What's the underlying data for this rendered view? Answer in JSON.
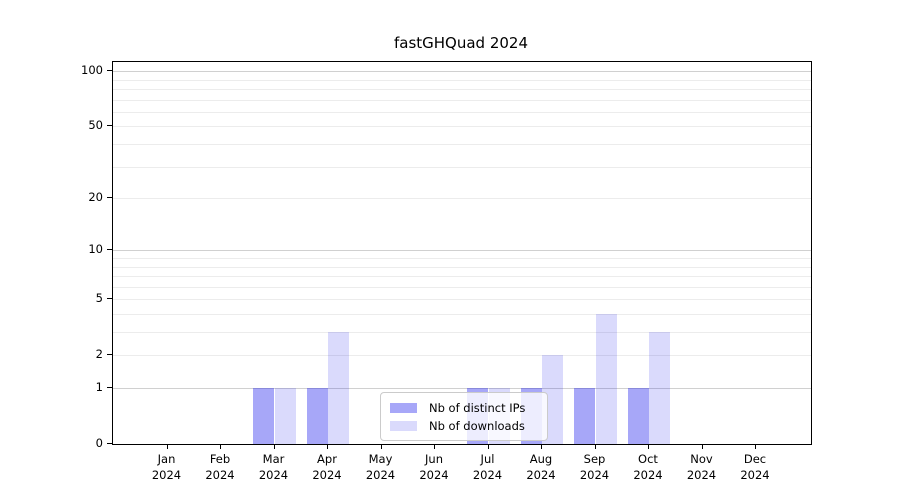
{
  "chart_data": {
    "type": "bar",
    "title": "fastGHQuad 2024",
    "categories": [
      "Jan 2024",
      "Feb 2024",
      "Mar 2024",
      "Apr 2024",
      "May 2024",
      "Jun 2024",
      "Jul 2024",
      "Aug 2024",
      "Sep 2024",
      "Oct 2024",
      "Nov 2024",
      "Dec 2024"
    ],
    "series": [
      {
        "name": "Nb of distinct IPs",
        "values": [
          0,
          0,
          1,
          1,
          0,
          0,
          1,
          1,
          1,
          1,
          0,
          0
        ],
        "color": "rgba(10,10,235,0.36)",
        "color_hex": "#a8a8f7"
      },
      {
        "name": "Nb of downloads",
        "values": [
          0,
          0,
          1,
          3,
          0,
          0,
          1,
          2,
          4,
          3,
          0,
          0
        ],
        "color": "rgba(10,10,235,0.15)",
        "color_hex": "#d9d9f8"
      }
    ],
    "y_ticks": [
      0,
      1,
      2,
      5,
      10,
      20,
      50,
      100
    ],
    "y_scale": "log10(1+x)",
    "ylim": [
      0,
      113
    ],
    "xlabel": "",
    "ylabel": "",
    "grid": "horizontal major+minor",
    "minor_grid_values": [
      2,
      3,
      4,
      5,
      6,
      7,
      8,
      9,
      20,
      30,
      40,
      50,
      60,
      70,
      80,
      90
    ],
    "major_grid_values": [
      1,
      10,
      100
    ],
    "legend_position": "lower center"
  },
  "colors": {
    "background": "#ffffff",
    "axis": "#000000",
    "grid_minor": "#ececec",
    "grid_major": "#d0d0d0",
    "legend_border": "#cbcbcb",
    "bar_dark": "#a8a8f7",
    "bar_light": "#d9d9f8"
  }
}
